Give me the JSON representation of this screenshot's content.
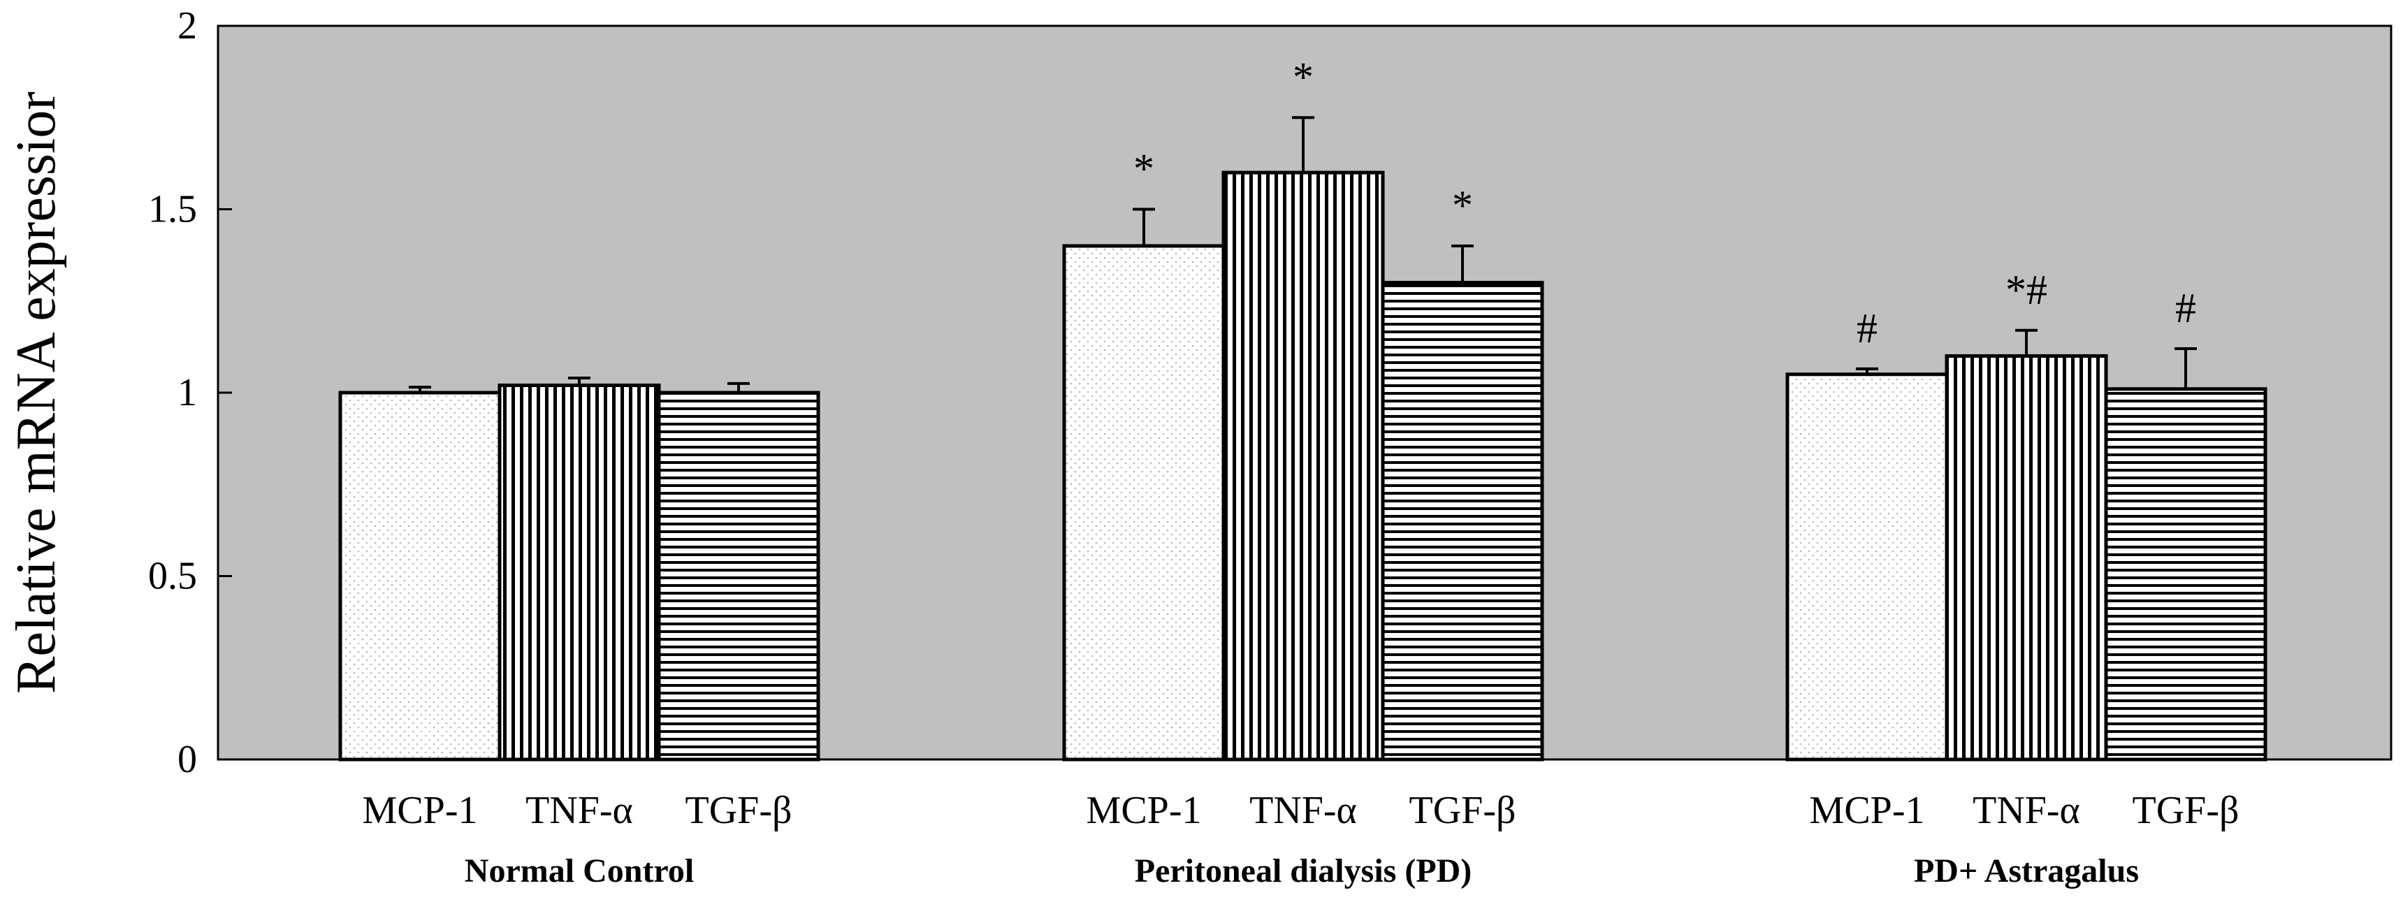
{
  "chart_data": {
    "type": "bar",
    "ylabel": "Relative mRNA expressior",
    "ylim": [
      0,
      2
    ],
    "yticks": [
      0,
      0.5,
      1,
      1.5,
      2
    ],
    "ytick_labels": [
      "0",
      "0.5",
      "1",
      "1.5",
      "2"
    ],
    "grid": false,
    "background_color": "#c0c0c0",
    "series": [
      {
        "name": "MCP-1",
        "pattern": "dots"
      },
      {
        "name": "TNF-α",
        "pattern": "vertical"
      },
      {
        "name": "TGF-β",
        "pattern": "horizontal"
      }
    ],
    "groups": [
      {
        "name": "Normal Control",
        "bars": [
          {
            "label": "MCP-1",
            "value": 1.0,
            "error": 0.015,
            "annotation": ""
          },
          {
            "label": "TNF-α",
            "value": 1.02,
            "error": 0.02,
            "annotation": ""
          },
          {
            "label": "TGF-β",
            "value": 1.0,
            "error": 0.025,
            "annotation": ""
          }
        ]
      },
      {
        "name": "Peritoneal dialysis (PD)",
        "bars": [
          {
            "label": "MCP-1",
            "value": 1.4,
            "error": 0.1,
            "annotation": "*"
          },
          {
            "label": "TNF-α",
            "value": 1.6,
            "error": 0.15,
            "annotation": "*"
          },
          {
            "label": "TGF-β",
            "value": 1.3,
            "error": 0.1,
            "annotation": "*"
          }
        ]
      },
      {
        "name": "PD+ Astragalus",
        "bars": [
          {
            "label": "MCP-1",
            "value": 1.05,
            "error": 0.015,
            "annotation": "#"
          },
          {
            "label": "TNF-α",
            "value": 1.1,
            "error": 0.07,
            "annotation": "*#"
          },
          {
            "label": "TGF-β",
            "value": 1.01,
            "error": 0.11,
            "annotation": "#"
          }
        ]
      }
    ]
  }
}
